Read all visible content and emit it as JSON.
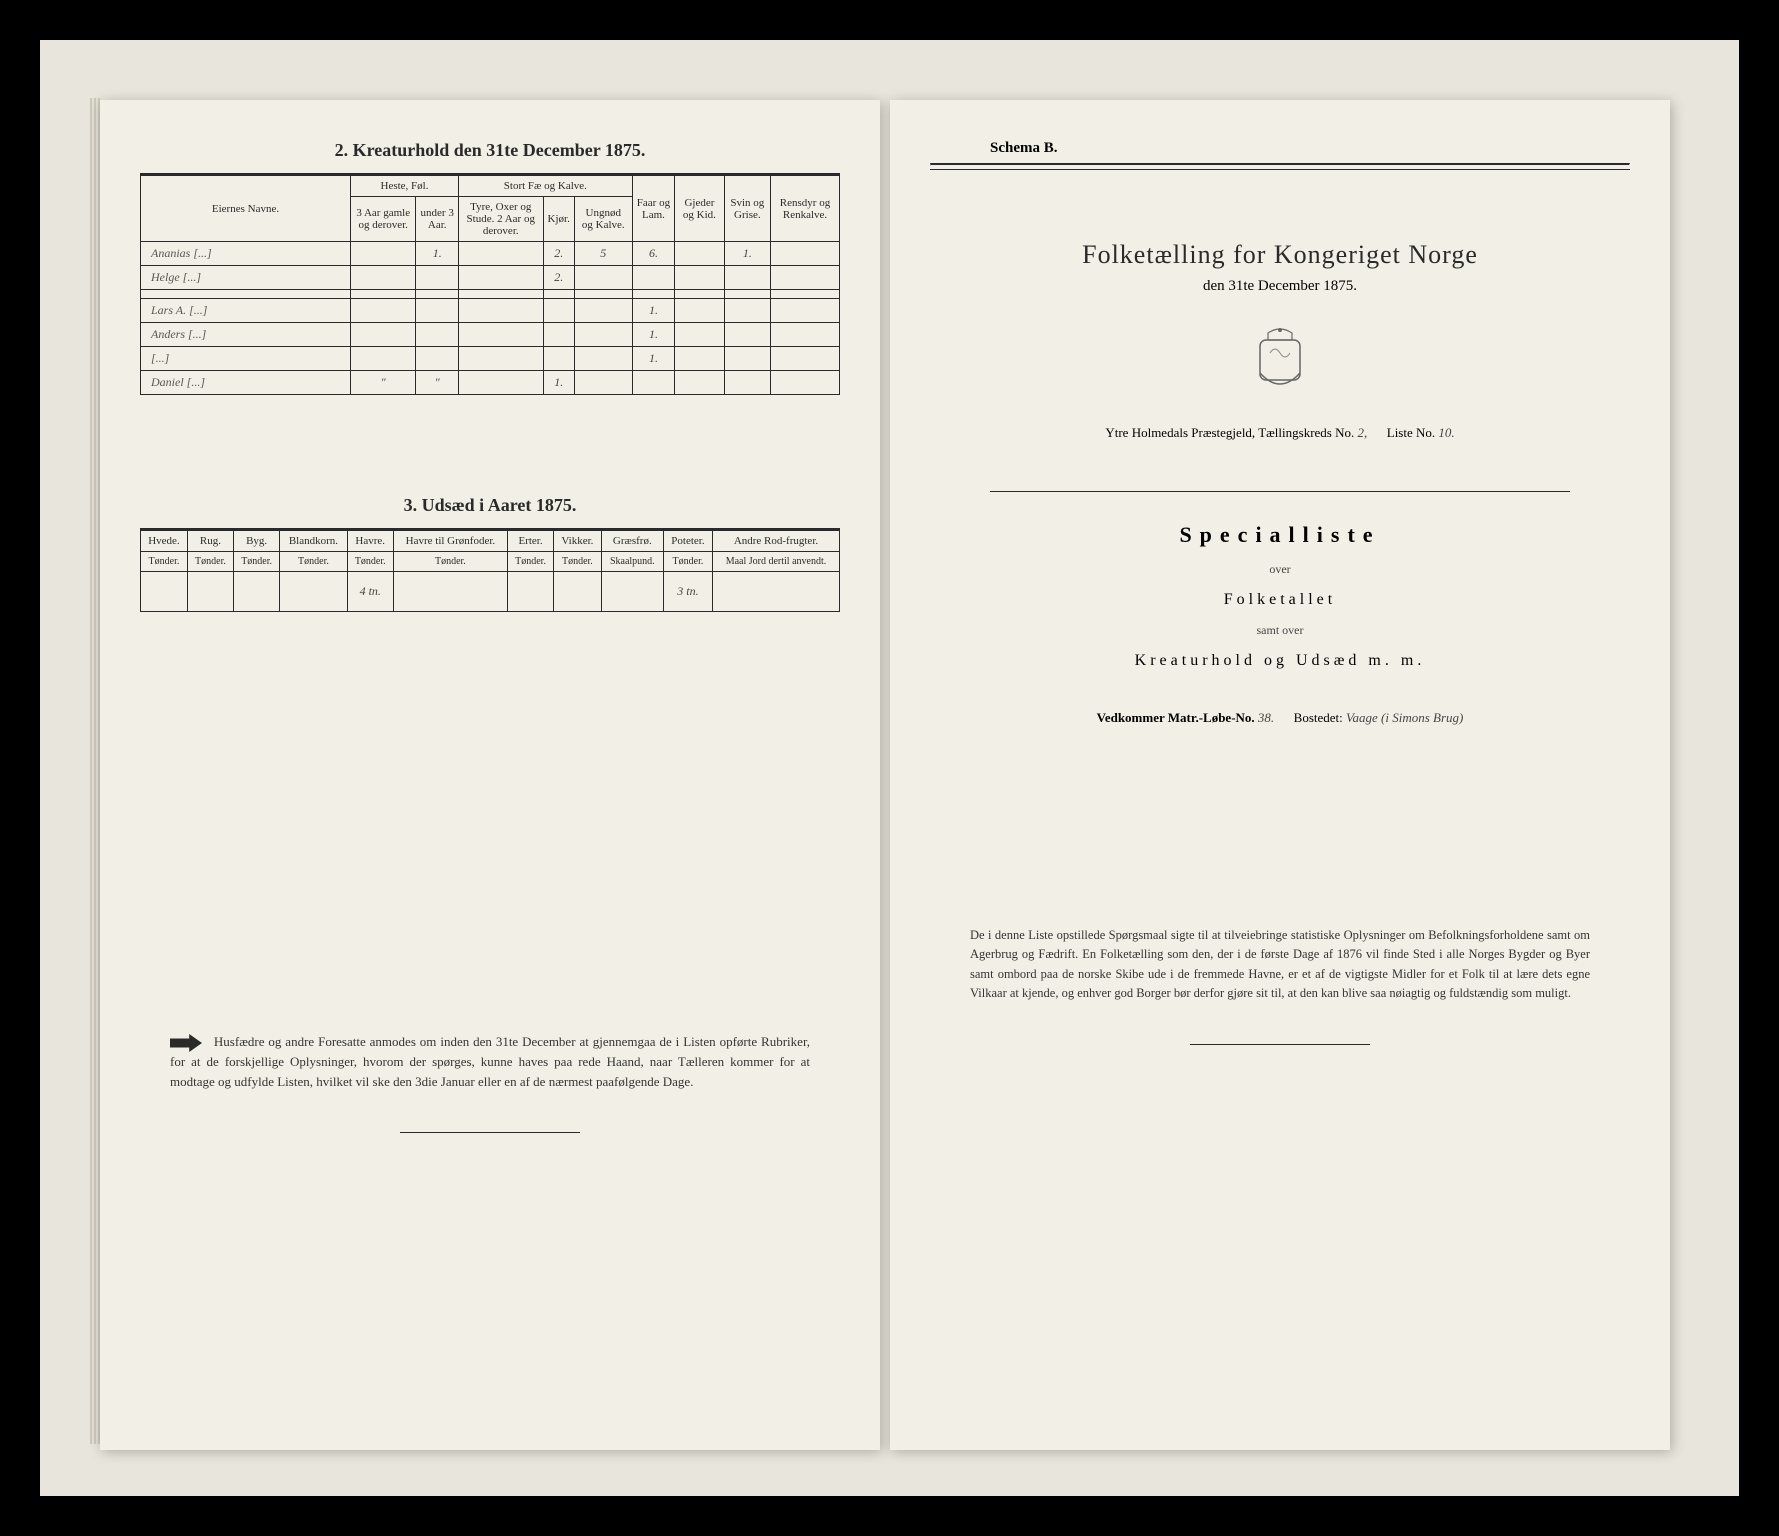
{
  "left": {
    "section2_title": "2.  Kreaturhold den 31te December 1875.",
    "table2": {
      "head_owner": "Eiernes Navne.",
      "head_heste": "Heste, Føl.",
      "head_heste_a": "3 Aar gamle og derover.",
      "head_heste_b": "under 3 Aar.",
      "head_stort": "Stort Fæ og Kalve.",
      "head_stort_a": "Tyre, Oxer og Stude. 2 Aar og derover.",
      "head_stort_b": "Kjør.",
      "head_stort_c": "Ungnød og Kalve.",
      "head_faar": "Faar og Lam.",
      "head_gjeder": "Gjeder og Kid.",
      "head_svin": "Svin og Grise.",
      "head_rens": "Rensdyr og Renkalve.",
      "rows": [
        {
          "name": "Ananias [...]",
          "a": "",
          "b": "1.",
          "c": "",
          "d": "2.",
          "e": "5",
          "f": "6.",
          "g": "",
          "h": "1.",
          "i": ""
        },
        {
          "name": "Helge [...]",
          "a": "",
          "b": "",
          "c": "",
          "d": "2.",
          "e": "",
          "f": "",
          "g": "",
          "h": "",
          "i": ""
        },
        {
          "name": "",
          "a": "",
          "b": "",
          "c": "",
          "d": "",
          "e": "",
          "f": "",
          "g": "",
          "h": "",
          "i": ""
        },
        {
          "name": "Lars A. [...]",
          "a": "",
          "b": "",
          "c": "",
          "d": "",
          "e": "",
          "f": "1.",
          "g": "",
          "h": "",
          "i": ""
        },
        {
          "name": "Anders [...]",
          "a": "",
          "b": "",
          "c": "",
          "d": "",
          "e": "",
          "f": "1.",
          "g": "",
          "h": "",
          "i": ""
        },
        {
          "name": "[...]",
          "a": "",
          "b": "",
          "c": "",
          "d": "",
          "e": "",
          "f": "1.",
          "g": "",
          "h": "",
          "i": ""
        },
        {
          "name": "Daniel [...]",
          "a": "\"",
          "b": "\"",
          "c": "",
          "d": "1.",
          "e": "",
          "f": "",
          "g": "",
          "h": "",
          "i": ""
        }
      ]
    },
    "section3_title": "3.  Udsæd i Aaret 1875.",
    "table3": {
      "cols": [
        "Hvede.",
        "Rug.",
        "Byg.",
        "Blandkorn.",
        "Havre.",
        "Havre til Grønfoder.",
        "Erter.",
        "Vikker.",
        "Græsfrø.",
        "Poteter.",
        "Andre Rod-frugter."
      ],
      "sub": [
        "Tønder.",
        "Tønder.",
        "Tønder.",
        "Tønder.",
        "Tønder.",
        "Tønder.",
        "Tønder.",
        "Tønder.",
        "Skaalpund.",
        "Tønder.",
        "Maal Jord dertil anvendt."
      ],
      "row": [
        "",
        "",
        "",
        "",
        "4 tn.",
        "",
        "",
        "",
        "",
        "3 tn.",
        ""
      ]
    },
    "footnote": "Husfædre og andre Foresatte anmodes om inden den 31te December at gjennemgaa de i Listen opførte Rubriker, for at de forskjellige Oplysninger, hvorom der spørges, kunne haves paa rede Haand, naar Tælleren kommer for at modtage og udfylde Listen, hvilket vil ske den 3die Januar eller en af de nærmest paafølgende Dage."
  },
  "right": {
    "schema": "Schema B.",
    "title": "Folketælling for Kongeriget Norge",
    "subtitle": "den 31te December 1875.",
    "meta_prefix": "Ytre Holmedals  Præstegjeld,  Tællingskreds No.",
    "meta_kreds": "2,",
    "meta_liste_lbl": "Liste No.",
    "meta_liste": "10.",
    "specialliste": "Specialliste",
    "over1": "over",
    "folketallet": "Folketallet",
    "samt": "samt over",
    "kreatur": "Kreaturhold og Udsæd m. m.",
    "vedk_lbl": "Vedkommer Matr.-Løbe-No.",
    "vedk_no": "38.",
    "bostedet_lbl": "Bostedet:",
    "bostedet": "Vaage (i Simons Brug)",
    "footer": "De i denne Liste opstillede Spørgsmaal sigte til at tilveiebringe statistiske Oplysninger om Befolkningsforholdene samt om Agerbrug og Fædrift.  En Folketælling som den, der i de første Dage af 1876 vil finde Sted i alle Norges Bygder og Byer samt ombord paa de norske Skibe ude i de fremmede Havne, er et af de vigtigste Midler for et Folk til at lære dets egne Vilkaar at kjende, og enhver god Borger bør derfor gjøre sit til, at den kan blive saa nøiagtig og fuldstændig som muligt."
  }
}
